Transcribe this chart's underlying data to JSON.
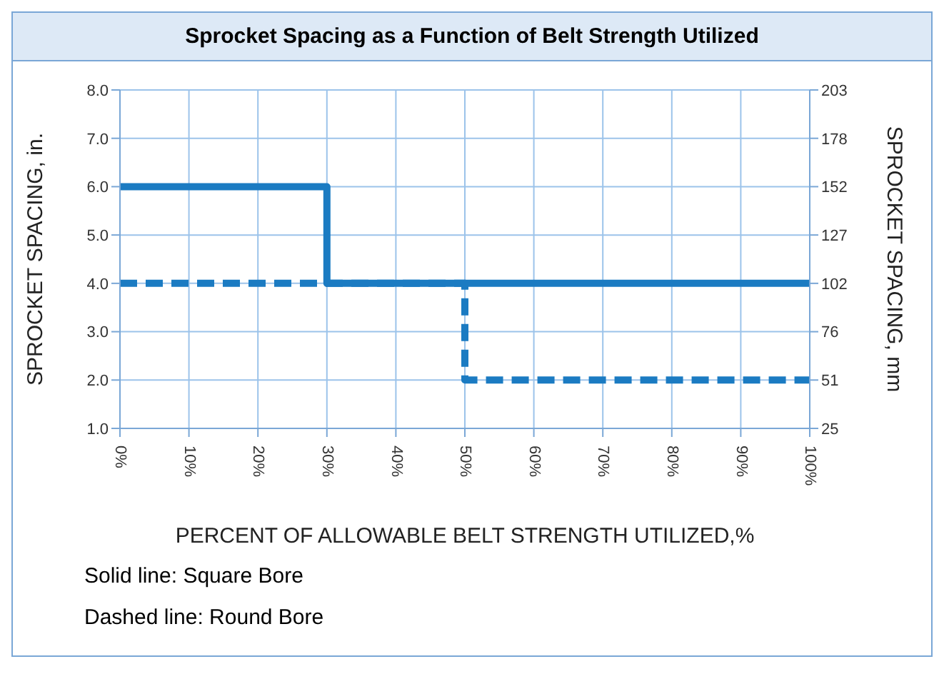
{
  "chart_data": {
    "type": "line",
    "title": "Sprocket Spacing as a Function of Belt Strength Utilized",
    "xlabel": "PERCENT OF ALLOWABLE BELT STRENGTH UTILIZED,%",
    "ylabel": "SPROCKET SPACING, in.",
    "y2label": "SPROCKET SPACING, mm",
    "series": [
      {
        "color": "#1b7bc2",
        "x": [
          0,
          30,
          30,
          100
        ],
        "values": [
          6,
          6,
          4,
          4
        ],
        "line_style": "solid"
      },
      {
        "color": "#1b7bc2",
        "x": [
          0,
          50,
          50,
          100
        ],
        "values": [
          4,
          4,
          2,
          2
        ],
        "line_style": "dashed"
      }
    ],
    "xlim": [
      0,
      100
    ],
    "xticks": [
      {
        "value": 0,
        "label": "0%"
      },
      {
        "value": 10,
        "label": "10%"
      },
      {
        "value": 20,
        "label": "20%"
      },
      {
        "value": 30,
        "label": "30%"
      },
      {
        "value": 40,
        "label": "40%"
      },
      {
        "value": 50,
        "label": "50%"
      },
      {
        "value": 60,
        "label": "60%"
      },
      {
        "value": 70,
        "label": "70%"
      },
      {
        "value": 80,
        "label": "80%"
      },
      {
        "value": 90,
        "label": "90%"
      },
      {
        "value": 100,
        "label": "100%"
      }
    ],
    "ylim": [
      1,
      8
    ],
    "yticks": [
      {
        "value": 1,
        "label": "1.0"
      },
      {
        "value": 2,
        "label": "2.0"
      },
      {
        "value": 3,
        "label": "3.0"
      },
      {
        "value": 4,
        "label": "4.0"
      },
      {
        "value": 5,
        "label": "5.0"
      },
      {
        "value": 6,
        "label": "6.0"
      },
      {
        "value": 7,
        "label": "7.0"
      },
      {
        "value": 8,
        "label": "8.0"
      }
    ],
    "y2lim": [
      25.4,
      203.2
    ],
    "y2ticks": [
      {
        "value": 25.4,
        "label": "25"
      },
      {
        "value": 50.8,
        "label": "51"
      },
      {
        "value": 76.2,
        "label": "76"
      },
      {
        "value": 101.6,
        "label": "102"
      },
      {
        "value": 127,
        "label": "127"
      },
      {
        "value": 152.4,
        "label": "152"
      },
      {
        "value": 177.8,
        "label": "178"
      },
      {
        "value": 203.2,
        "label": "203"
      }
    ],
    "grid": true,
    "marker": "none",
    "annotations": [
      "Solid line: Square Bore",
      "Dashed line: Round Bore"
    ]
  }
}
